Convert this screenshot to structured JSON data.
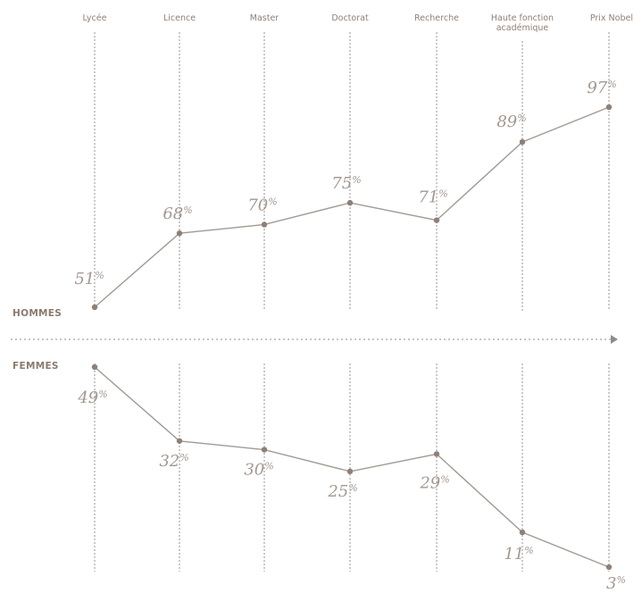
{
  "chart_data": {
    "type": "line",
    "categories": [
      "Lycée",
      "Licence",
      "Master",
      "Doctorat",
      "Recherche",
      "Haute fonction académique",
      "Prix Nobel"
    ],
    "category_lines": [
      [
        "Lycée"
      ],
      [
        "Licence"
      ],
      [
        "Master"
      ],
      [
        "Doctorat"
      ],
      [
        "Recherche"
      ],
      [
        "Haute fonction",
        "académique"
      ],
      [
        "Prix Nobel"
      ]
    ],
    "series": [
      {
        "name": "HOMMES",
        "values": [
          51,
          68,
          70,
          75,
          71,
          89,
          97
        ]
      },
      {
        "name": "FEMMES",
        "values": [
          49,
          32,
          30,
          25,
          29,
          11,
          3
        ]
      }
    ],
    "value_suffix": "%",
    "ylim": [
      0,
      100
    ],
    "colors": {
      "line": "#a39a94",
      "marker": "#8e8078",
      "guide": "#7a7a7a",
      "text": "#a39890",
      "group": "#8b7a6e",
      "category": "#8e8176"
    }
  }
}
